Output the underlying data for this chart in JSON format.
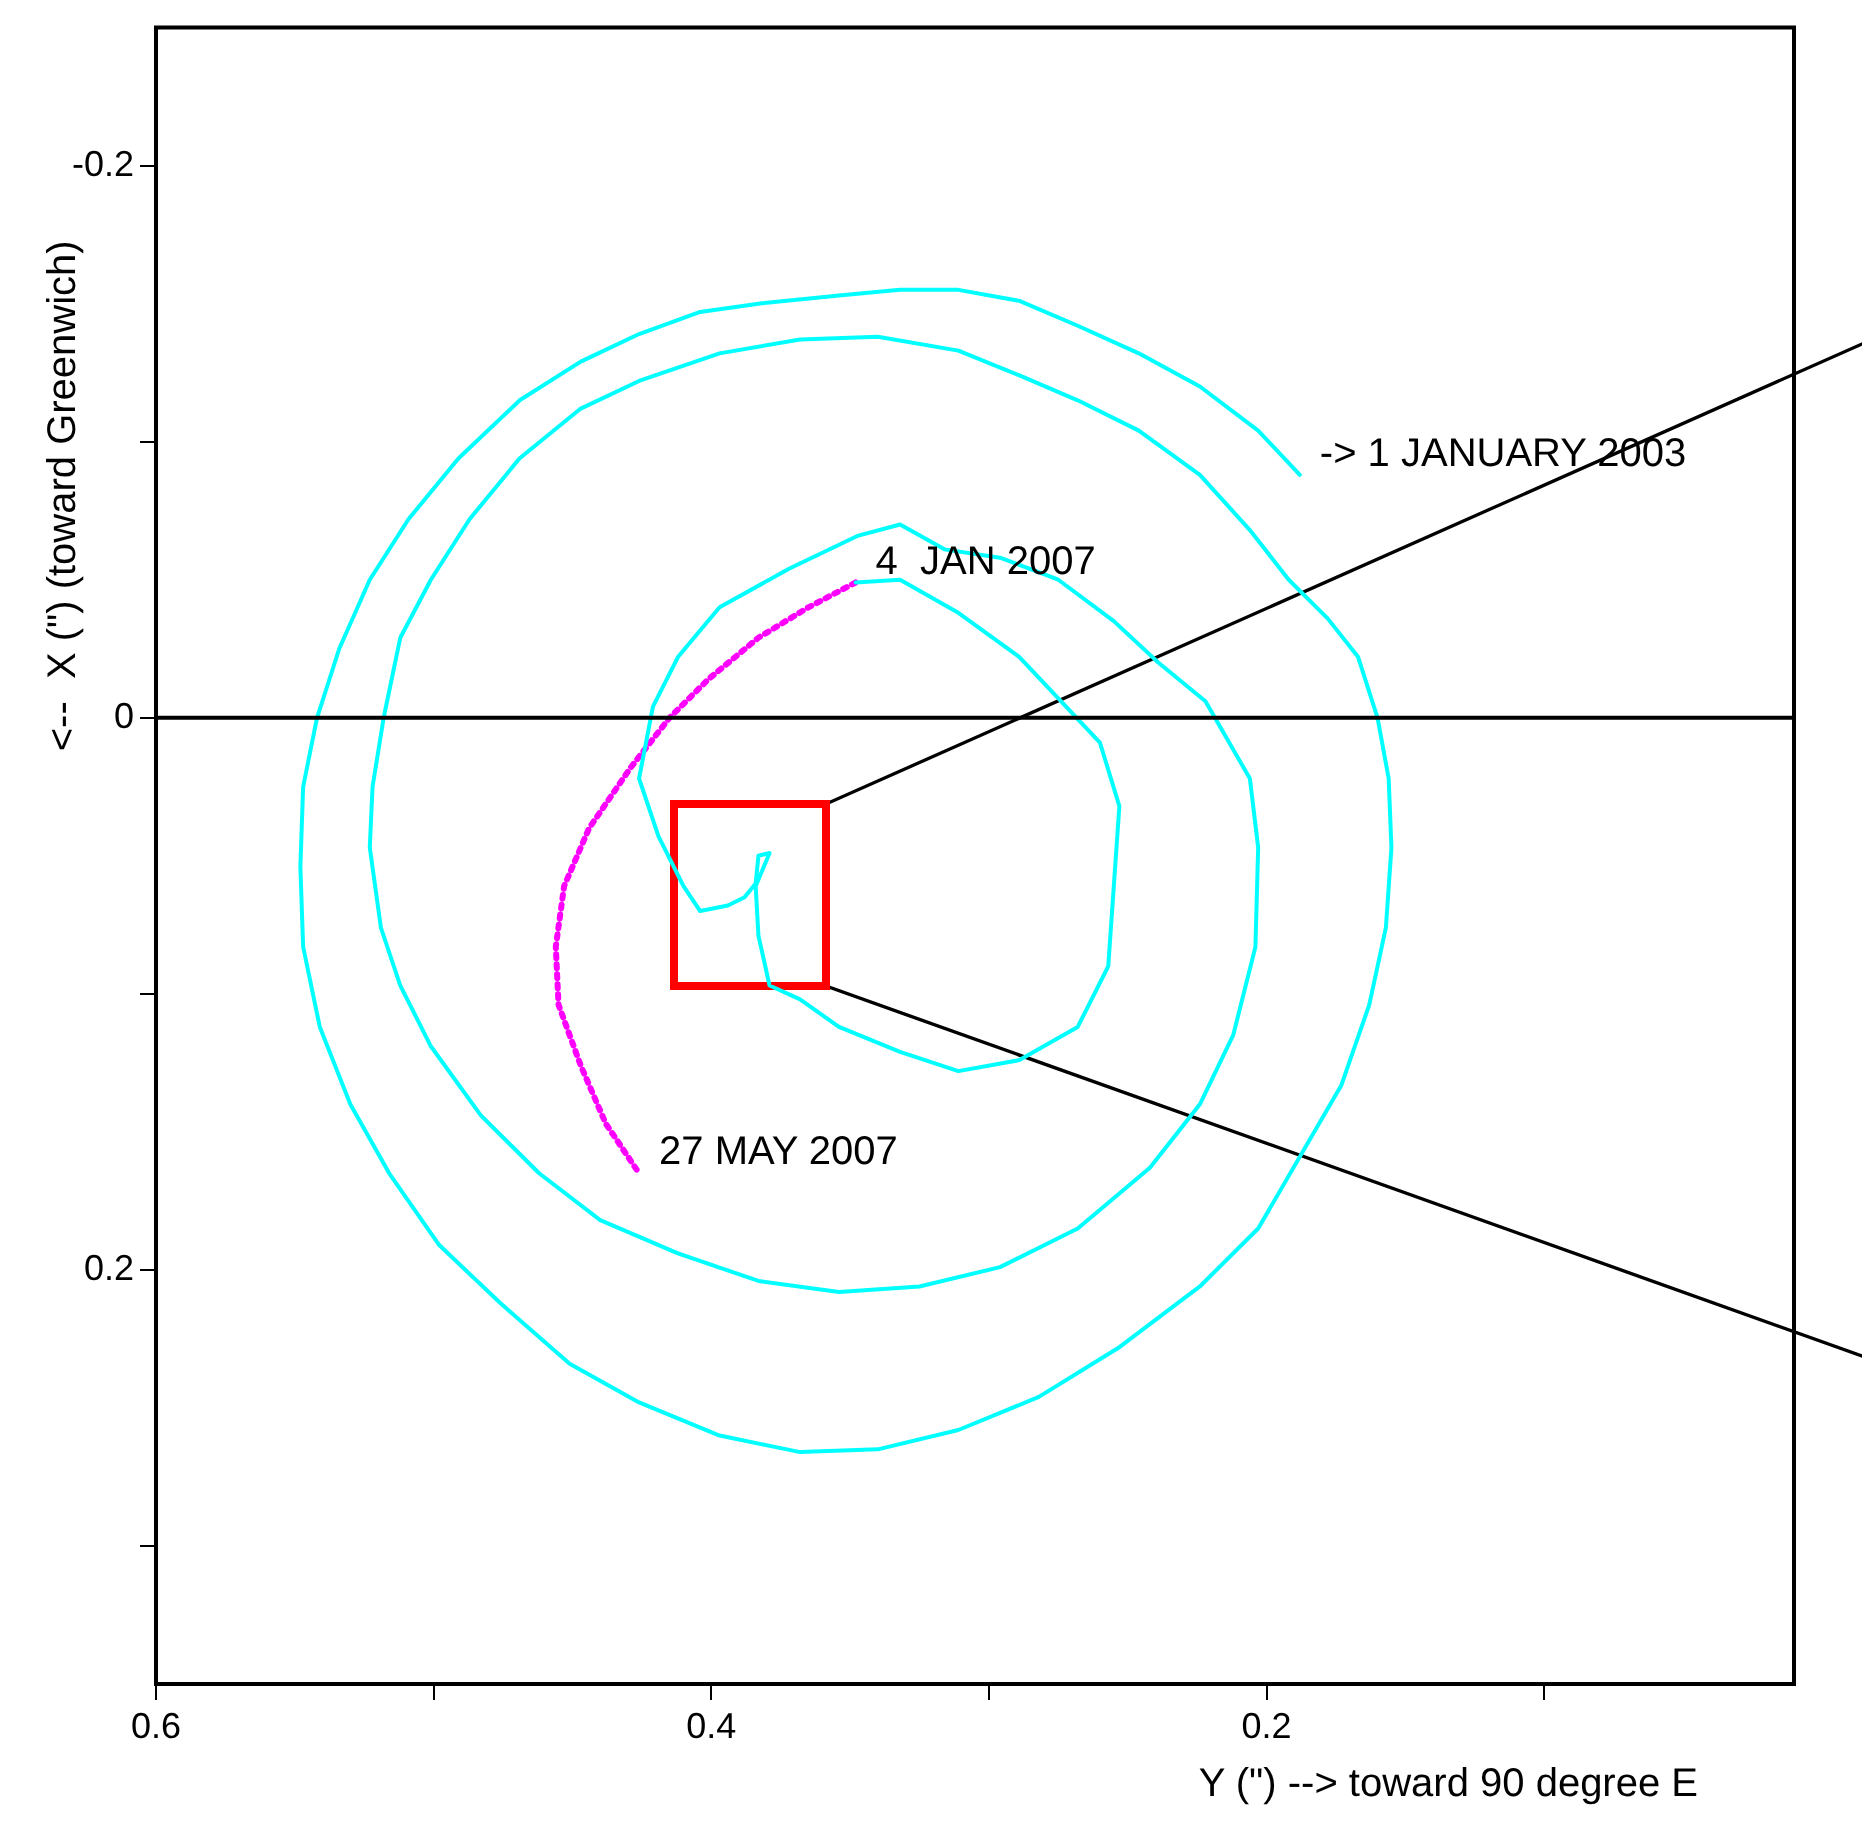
{
  "chart_data": {
    "type": "line",
    "xlabel": "Y (\") --> toward 90 degree E",
    "ylabel": "<--  X (\") (toward Greenwich)",
    "xlim": [
      0.6,
      0.01
    ],
    "ylim": [
      0.35,
      -0.25
    ],
    "xticks": [
      0.6,
      {
        "value": 0.5,
        "label": null
      },
      0.4,
      {
        "value": 0.3,
        "label": null
      },
      0.2,
      {
        "value": 0.1,
        "label": null
      }
    ],
    "yticks": [
      -0.2,
      {
        "value": -0.1,
        "label": null
      },
      0,
      {
        "value": 0.1,
        "label": null
      },
      0.2,
      {
        "value": 0.3,
        "label": null
      }
    ],
    "grid": false,
    "legend": false,
    "marker": "none",
    "ref_lines": [
      {
        "axis": "y",
        "value": 0,
        "color": "#000000"
      }
    ],
    "annotations": [
      {
        "text": "-> 1 JANUARY 2003",
        "x": 0.188,
        "y": -0.088
      },
      {
        "text": "4  JAN 2007",
        "x": 0.348,
        "y": -0.049
      },
      {
        "text": "27 MAY 2007",
        "x": 0.426,
        "y": 0.165
      }
    ],
    "series": [
      {
        "color": "#00ffff",
        "line_style": "solid",
        "x": [
          0.188,
          0.203,
          0.224,
          0.246,
          0.268,
          0.289,
          0.311,
          0.332,
          0.354,
          0.383,
          0.404,
          0.426,
          0.447,
          0.469,
          0.491,
          0.509,
          0.523,
          0.534,
          0.542,
          0.547,
          0.548,
          0.547,
          0.541,
          0.53,
          0.516,
          0.498,
          0.476,
          0.451,
          0.426,
          0.397,
          0.368,
          0.34,
          0.311,
          0.282,
          0.253,
          0.224,
          0.203,
          0.173,
          0.163,
          0.157,
          0.155,
          0.156,
          0.16,
          0.167,
          0.178,
          0.192,
          0.206,
          0.224,
          0.246,
          0.268,
          0.289,
          0.311,
          0.34,
          0.368,
          0.397,
          0.426,
          0.447,
          0.469,
          0.487,
          0.501,
          0.512,
          0.518,
          0.522,
          0.523,
          0.519,
          0.512,
          0.501,
          0.483,
          0.462,
          0.44,
          0.412,
          0.383,
          0.354,
          0.325,
          0.296,
          0.268,
          0.242,
          0.224,
          0.212,
          0.204,
          0.203,
          0.206,
          0.222,
          0.239,
          0.255,
          0.275,
          0.296,
          0.316,
          0.332,
          0.347,
          0.372,
          0.397,
          0.412,
          0.421,
          0.426,
          0.419,
          0.41,
          0.404,
          0.394,
          0.388,
          0.384,
          0.383,
          0.379,
          0.384,
          0.383,
          0.379,
          0.368,
          0.354,
          0.332,
          0.311,
          0.289,
          0.268,
          0.257,
          0.255,
          0.253,
          0.26,
          0.275,
          0.289,
          0.311,
          0.332,
          0.348
        ],
        "values": [
          -0.088,
          -0.104,
          -0.12,
          -0.132,
          -0.142,
          -0.151,
          -0.155,
          -0.155,
          -0.153,
          -0.15,
          -0.147,
          -0.139,
          -0.129,
          -0.115,
          -0.094,
          -0.072,
          -0.05,
          -0.025,
          0,
          0.025,
          0.054,
          0.083,
          0.112,
          0.14,
          0.165,
          0.191,
          0.212,
          0.234,
          0.248,
          0.26,
          0.266,
          0.265,
          0.258,
          0.246,
          0.228,
          0.206,
          0.185,
          0.133,
          0.104,
          0.076,
          0.047,
          0.022,
          0,
          -0.022,
          -0.036,
          -0.05,
          -0.068,
          -0.088,
          -0.104,
          -0.115,
          -0.124,
          -0.133,
          -0.138,
          -0.137,
          -0.132,
          -0.122,
          -0.112,
          -0.094,
          -0.072,
          -0.05,
          -0.029,
          0,
          0.025,
          0.047,
          0.076,
          0.097,
          0.119,
          0.144,
          0.165,
          0.182,
          0.194,
          0.204,
          0.208,
          0.206,
          0.199,
          0.185,
          0.163,
          0.14,
          0.115,
          0.083,
          0.047,
          0.022,
          -0.006,
          -0.02,
          -0.035,
          -0.05,
          -0.058,
          -0.061,
          -0.07,
          -0.066,
          -0.054,
          -0.04,
          -0.022,
          -0.004,
          0.022,
          0.043,
          0.061,
          0.07,
          0.068,
          0.065,
          0.06,
          0.05,
          0.049,
          0.061,
          0.079,
          0.097,
          0.102,
          0.112,
          0.121,
          0.128,
          0.124,
          0.112,
          0.09,
          0.061,
          0.032,
          0.009,
          -0.007,
          -0.022,
          -0.038,
          -0.05,
          -0.049
        ]
      },
      {
        "color": "#ff00ff",
        "line_style": "dotted",
        "x": [
          0.348,
          0.365,
          0.383,
          0.401,
          0.415,
          0.429,
          0.444,
          0.453,
          0.456,
          0.455,
          0.447,
          0.438,
          0.426
        ],
        "values": [
          -0.049,
          -0.04,
          -0.029,
          -0.014,
          0,
          0.018,
          0.04,
          0.061,
          0.083,
          0.104,
          0.126,
          0.147,
          0.165
        ]
      }
    ]
  }
}
